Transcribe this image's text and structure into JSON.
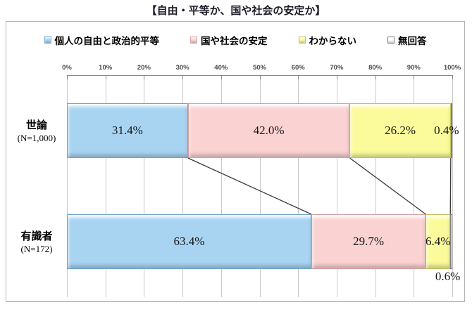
{
  "chart_data": {
    "type": "bar",
    "orientation": "horizontal-stacked",
    "title": "【自由・平等か、国や社会の安定か】",
    "categories": [
      {
        "label": "世論",
        "n_label": "(N=1,000)"
      },
      {
        "label": "有識者",
        "n_label": "(N=172)"
      }
    ],
    "series": [
      {
        "name": "個人の自由と政治的平等",
        "color": "#a8d4f2",
        "border": "#6fa4cc",
        "values": [
          31.4,
          63.4
        ],
        "labels": [
          "31.4%",
          "63.4%"
        ]
      },
      {
        "name": "国や社会の安定",
        "color": "#fad2d2",
        "border": "#d9a0a0",
        "values": [
          42.0,
          29.7
        ],
        "labels": [
          "42.0%",
          "29.7%"
        ]
      },
      {
        "name": "わからない",
        "color": "#fbfb9c",
        "border": "#c2c25e",
        "values": [
          26.2,
          6.4
        ],
        "labels": [
          "26.2%",
          "6.4%"
        ]
      },
      {
        "name": "無回答",
        "color": "#ffffff",
        "border": "#7f7f7f",
        "values": [
          0.4,
          0.6
        ],
        "labels": [
          "0.4%",
          "0.6%"
        ]
      }
    ],
    "x_axis": {
      "position": "top",
      "min": 0,
      "max": 100,
      "ticks": [
        "0%",
        "10%",
        "20%",
        "30%",
        "40%",
        "50%",
        "60%",
        "70%",
        "80%",
        "90%",
        "100%"
      ],
      "grid": true
    },
    "legend_position": "top",
    "connector_lines": true,
    "colors": {
      "grid": "#c9c9c9",
      "axis": "#8a8a8a",
      "frame_border": "#b3b3b3",
      "connector": "#383838",
      "tick_label": "#4a4a4a",
      "title": "#1c1c28"
    }
  }
}
